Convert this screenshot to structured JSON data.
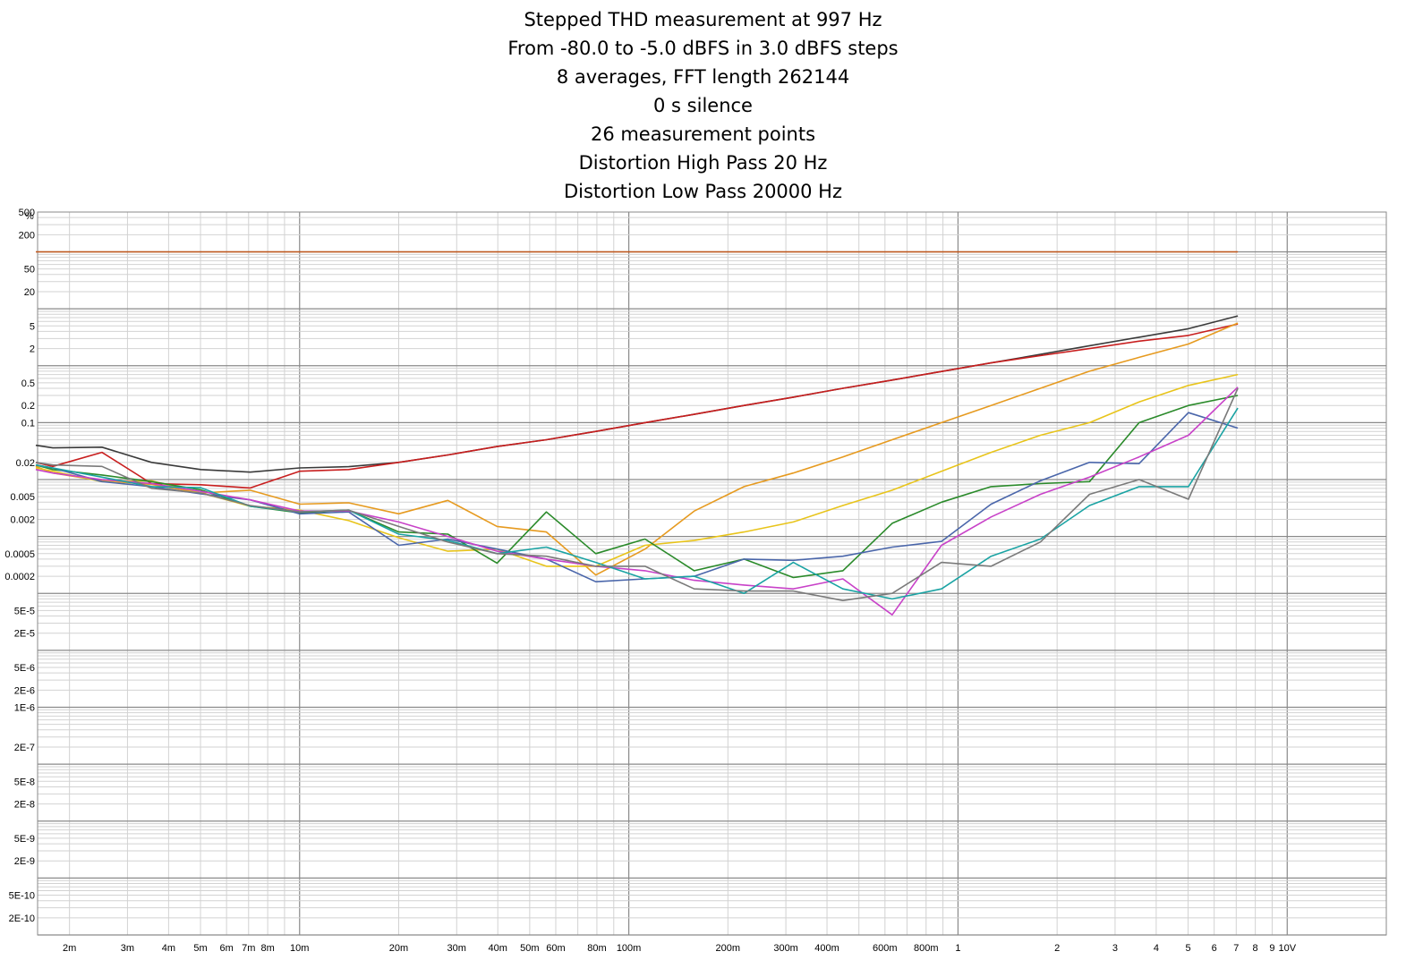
{
  "chart_data": {
    "type": "line",
    "title_lines": [
      "Stepped THD measurement at 997 Hz",
      "From -80.0 to -5.0 dBFS in 3.0 dBFS steps",
      "8 averages, FFT length 262144",
      "0 s silence",
      "26 measurement points",
      "Distortion High Pass 20 Hz",
      "Distortion Low Pass 20000 Hz"
    ],
    "ylabel": "%",
    "x_scale": "log",
    "y_scale": "log",
    "xlim": [
      0.0016,
      20
    ],
    "ylim": [
      1e-10,
      500
    ],
    "x_tick_labels": [
      {
        "v": 0.002,
        "t": "2m"
      },
      {
        "v": 0.003,
        "t": "3m"
      },
      {
        "v": 0.004,
        "t": "4m"
      },
      {
        "v": 0.005,
        "t": "5m"
      },
      {
        "v": 0.006,
        "t": "6m"
      },
      {
        "v": 0.007,
        "t": "7m"
      },
      {
        "v": 0.008,
        "t": "8m"
      },
      {
        "v": 0.01,
        "t": "10m"
      },
      {
        "v": 0.02,
        "t": "20m"
      },
      {
        "v": 0.03,
        "t": "30m"
      },
      {
        "v": 0.04,
        "t": "40m"
      },
      {
        "v": 0.05,
        "t": "50m"
      },
      {
        "v": 0.06,
        "t": "60m"
      },
      {
        "v": 0.08,
        "t": "80m"
      },
      {
        "v": 0.1,
        "t": "100m"
      },
      {
        "v": 0.2,
        "t": "200m"
      },
      {
        "v": 0.3,
        "t": "300m"
      },
      {
        "v": 0.4,
        "t": "400m"
      },
      {
        "v": 0.6,
        "t": "600m"
      },
      {
        "v": 0.8,
        "t": "800m"
      },
      {
        "v": 1,
        "t": "1"
      },
      {
        "v": 2,
        "t": "2"
      },
      {
        "v": 3,
        "t": "3"
      },
      {
        "v": 4,
        "t": "4"
      },
      {
        "v": 5,
        "t": "5"
      },
      {
        "v": 6,
        "t": "6"
      },
      {
        "v": 7,
        "t": "7"
      },
      {
        "v": 8,
        "t": "8"
      },
      {
        "v": 9,
        "t": "9"
      },
      {
        "v": 10,
        "t": "10V"
      }
    ],
    "y_tick_labels": [
      {
        "v": 500,
        "t": "500"
      },
      {
        "v": 200,
        "t": "200"
      },
      {
        "v": 50,
        "t": "50"
      },
      {
        "v": 20,
        "t": "20"
      },
      {
        "v": 5,
        "t": "5"
      },
      {
        "v": 2,
        "t": "2"
      },
      {
        "v": 0.5,
        "t": "0.5"
      },
      {
        "v": 0.2,
        "t": "0.2"
      },
      {
        "v": 0.1,
        "t": "0.1"
      },
      {
        "v": 0.02,
        "t": "0.02"
      },
      {
        "v": 0.005,
        "t": "0.005"
      },
      {
        "v": 0.002,
        "t": "0.002"
      },
      {
        "v": 0.0005,
        "t": "0.0005"
      },
      {
        "v": 0.0002,
        "t": "0.0002"
      },
      {
        "v": 5e-05,
        "t": "5E-5"
      },
      {
        "v": 2e-05,
        "t": "2E-5"
      },
      {
        "v": 5e-06,
        "t": "5E-6"
      },
      {
        "v": 2e-06,
        "t": "2E-6"
      },
      {
        "v": 1e-06,
        "t": "1E-6"
      },
      {
        "v": 2e-07,
        "t": "2E-7"
      },
      {
        "v": 5e-08,
        "t": "5E-8"
      },
      {
        "v": 2e-08,
        "t": "2E-8"
      },
      {
        "v": 5e-09,
        "t": "5E-9"
      },
      {
        "v": 2e-09,
        "t": "2E-9"
      },
      {
        "v": 5e-10,
        "t": "5E-10"
      },
      {
        "v": 2e-10,
        "t": "2E-10"
      }
    ],
    "grid": true,
    "x": [
      0.00158,
      0.00178,
      0.00251,
      0.00355,
      0.00501,
      0.00708,
      0.01,
      0.0141,
      0.02,
      0.0282,
      0.0398,
      0.0562,
      0.0794,
      0.112,
      0.158,
      0.224,
      0.316,
      0.447,
      0.631,
      0.891,
      1.26,
      1.78,
      2.51,
      3.55,
      5.01,
      7.08
    ],
    "series": [
      {
        "color": "#c0561a",
        "values": [
          100,
          100,
          100,
          100,
          100,
          100,
          100,
          100,
          100,
          100,
          100,
          100,
          100,
          100,
          100,
          100,
          100,
          100,
          100,
          100,
          100,
          100,
          100,
          100,
          100,
          100
        ]
      },
      {
        "color": "#3a3a3a",
        "values": [
          0.04,
          0.036,
          0.037,
          0.02,
          0.015,
          0.0135,
          0.016,
          0.0168,
          0.02,
          0.027,
          0.038,
          0.05,
          0.07,
          0.1,
          0.14,
          0.2,
          0.28,
          0.4,
          0.56,
          0.79,
          1.12,
          1.58,
          2.24,
          3.16,
          4.47,
          7.5
        ]
      },
      {
        "color": "#c81e1e",
        "values": [
          0.02,
          0.017,
          0.03,
          0.0085,
          0.0081,
          0.0071,
          0.014,
          0.015,
          0.02,
          0.027,
          0.038,
          0.05,
          0.07,
          0.1,
          0.14,
          0.2,
          0.28,
          0.4,
          0.56,
          0.79,
          1.12,
          1.5,
          2.0,
          2.7,
          3.4,
          5.4
        ]
      },
      {
        "color": "#e69a1f",
        "values": [
          0.017,
          0.013,
          0.0095,
          0.0082,
          0.0058,
          0.0065,
          0.0037,
          0.0039,
          0.0025,
          0.0043,
          0.0015,
          0.0012,
          0.00021,
          0.0006,
          0.0028,
          0.0075,
          0.013,
          0.025,
          0.05,
          0.1,
          0.2,
          0.4,
          0.8,
          1.4,
          2.4,
          5.6
        ]
      },
      {
        "color": "#e8c41a",
        "values": [
          0.016,
          0.014,
          0.0092,
          0.0095,
          0.0058,
          0.0034,
          0.0029,
          0.0019,
          0.00095,
          0.00055,
          0.0006,
          0.0003,
          0.0003,
          0.0007,
          0.00085,
          0.0012,
          0.0018,
          0.0035,
          0.0065,
          0.014,
          0.03,
          0.06,
          0.1,
          0.23,
          0.45,
          0.7
        ]
      },
      {
        "color": "#2a8a2a",
        "values": [
          0.018,
          0.015,
          0.012,
          0.0092,
          0.0066,
          0.0034,
          0.0026,
          0.0029,
          0.0012,
          0.0011,
          0.00034,
          0.0027,
          0.0005,
          0.0009,
          0.00025,
          0.0004,
          0.00019,
          0.00025,
          0.0017,
          0.004,
          0.0075,
          0.0085,
          0.0092,
          0.1,
          0.2,
          0.3
        ]
      },
      {
        "color": "#4a66aa",
        "values": [
          0.018,
          0.016,
          0.0092,
          0.0075,
          0.0056,
          0.0044,
          0.0025,
          0.0027,
          0.0007,
          0.0009,
          0.0006,
          0.0004,
          0.00016,
          0.00018,
          0.0002,
          0.0004,
          0.00038,
          0.00045,
          0.00065,
          0.00082,
          0.0037,
          0.0095,
          0.02,
          0.019,
          0.15,
          0.08
        ]
      },
      {
        "color": "#c842c8",
        "values": [
          0.015,
          0.013,
          0.01,
          0.0085,
          0.0062,
          0.0044,
          0.0028,
          0.0028,
          0.0018,
          0.001,
          0.00055,
          0.0004,
          0.0003,
          0.00025,
          0.00017,
          0.00014,
          0.00012,
          0.00018,
          4.2e-05,
          0.0007,
          0.0022,
          0.0055,
          0.011,
          0.025,
          0.06,
          0.42
        ]
      },
      {
        "color": "#1aa3a3",
        "values": [
          0.018,
          0.016,
          0.011,
          0.0075,
          0.0072,
          0.0034,
          0.0027,
          0.0029,
          0.0011,
          0.00085,
          0.0005,
          0.00065,
          0.00035,
          0.00018,
          0.0002,
          0.0001,
          0.00035,
          0.00012,
          8e-05,
          0.00012,
          0.00045,
          0.0009,
          0.0035,
          0.0075,
          0.0075,
          0.18
        ]
      },
      {
        "color": "#7a7a7a",
        "values": [
          0.02,
          0.018,
          0.017,
          0.007,
          0.0058,
          0.0035,
          0.0027,
          0.0029,
          0.0015,
          0.0008,
          0.0005,
          0.00045,
          0.0003,
          0.0003,
          0.00012,
          0.00011,
          0.00011,
          7.5e-05,
          0.0001,
          0.00035,
          0.0003,
          0.0008,
          0.0055,
          0.01,
          0.0045,
          0.4
        ]
      }
    ]
  }
}
